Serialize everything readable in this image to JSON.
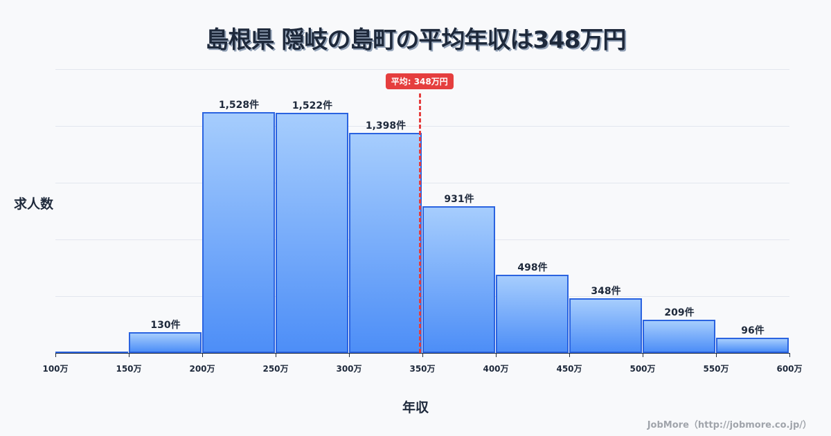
{
  "title": "島根県 隠岐の島町の平均年収は348万円",
  "ylabel": "求人数",
  "xlabel": "年収",
  "mean_badge": "平均: 348万円",
  "footer": "JobMore（http://jobmore.co.jp/）",
  "colors": {
    "bar_fill_top": "#a6cdfd",
    "bar_fill_bottom": "#4d8ef7",
    "bar_border": "#2a63e0",
    "mean_line": "#e53e3e",
    "text": "#1e293b"
  },
  "chart_data": {
    "type": "bar",
    "title": "島根県 隠岐の島町の平均年収は348万円",
    "xlabel": "年収",
    "ylabel": "求人数",
    "categories": [
      "100-150万",
      "150-200万",
      "200-250万",
      "250-300万",
      "300-350万",
      "350-400万",
      "400-450万",
      "450-500万",
      "500-550万",
      "550-600万"
    ],
    "values": [
      0,
      130,
      1528,
      1522,
      1398,
      931,
      498,
      348,
      209,
      96
    ],
    "value_labels": [
      "",
      "130件",
      "1,528件",
      "1,522件",
      "1,398件",
      "931件",
      "498件",
      "348件",
      "209件",
      "96件"
    ],
    "x_ticks": [
      "100万",
      "150万",
      "200万",
      "250万",
      "300万",
      "350万",
      "400万",
      "450万",
      "500万",
      "550万",
      "600万"
    ],
    "ylim": [
      0,
      1800
    ],
    "grid": true,
    "mean": {
      "value": 348,
      "label": "平均: 348万円"
    }
  }
}
